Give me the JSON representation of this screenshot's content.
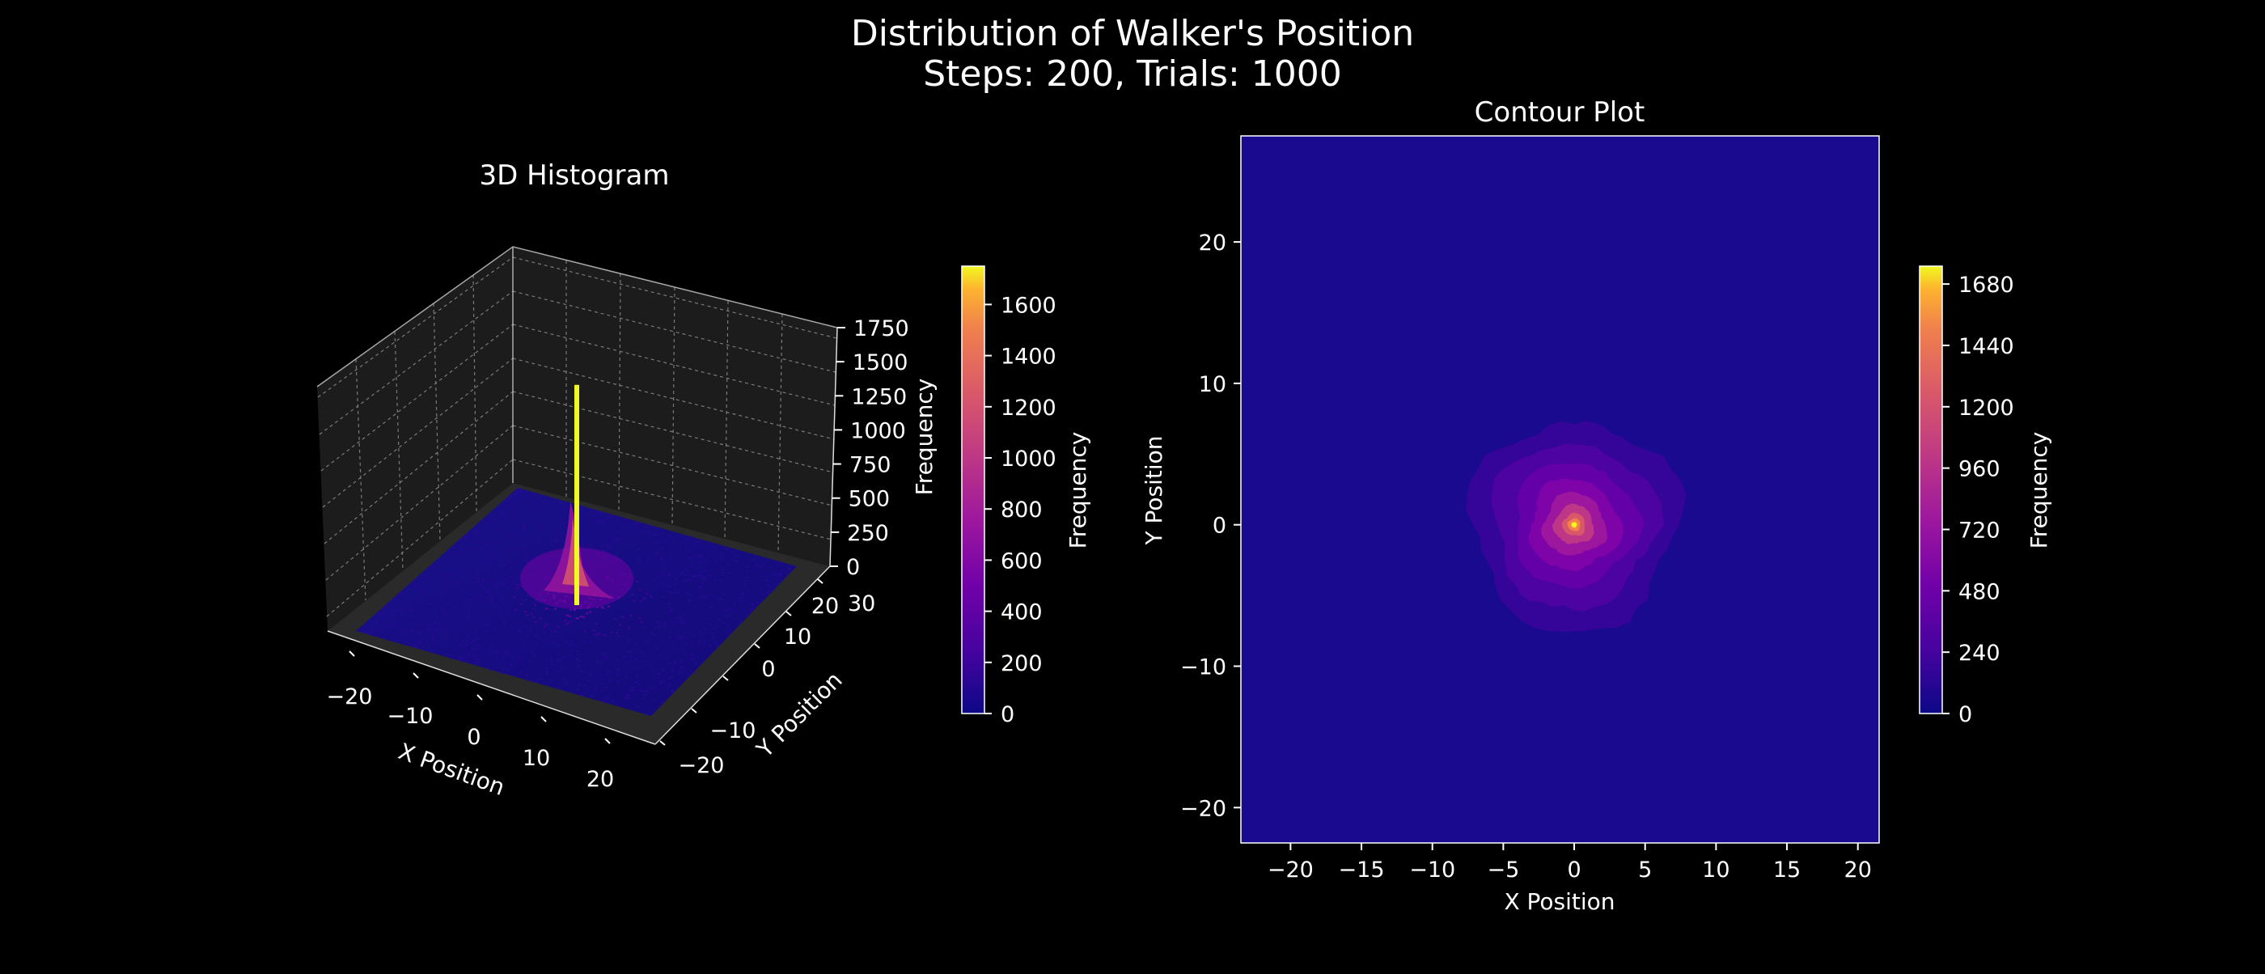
{
  "figure": {
    "title_line1": "Distribution of Walker's Position",
    "title_line2": "Steps: 200, Trials: 1000"
  },
  "chart_data": [
    {
      "type": "surface3d",
      "title": "3D Histogram",
      "xlabel": "X Position",
      "ylabel": "Y Position",
      "zlabel": "Frequency",
      "xlim": [
        -25,
        25
      ],
      "ylim": [
        -25,
        35
      ],
      "zlim": [
        0,
        1750
      ],
      "x_ticks": [
        "−20",
        "−10",
        "0",
        "10",
        "20"
      ],
      "y_ticks": [
        "−20",
        "−10",
        "0",
        "10",
        "20",
        "30"
      ],
      "z_ticks": [
        "0",
        "250",
        "500",
        "750",
        "1000",
        "1250",
        "1500",
        "1750"
      ],
      "peak": {
        "x": 0,
        "y": 0,
        "z": 1700
      },
      "grid": true,
      "colormap": "plasma",
      "colorbar": {
        "label": "Frequency",
        "range": [
          0,
          1750
        ],
        "ticks": [
          "0",
          "200",
          "400",
          "600",
          "800",
          "1000",
          "1200",
          "1400",
          "1600"
        ]
      }
    },
    {
      "type": "contour",
      "title": "Contour Plot",
      "xlabel": "X Position",
      "ylabel": "Y Position",
      "xlim": [
        -23.5,
        21.5
      ],
      "ylim": [
        -22.5,
        27.5
      ],
      "x_ticks": [
        "−20",
        "−15",
        "−10",
        "−5",
        "0",
        "5",
        "10",
        "15",
        "20"
      ],
      "y_ticks": [
        "−20",
        "−10",
        "0",
        "10",
        "20"
      ],
      "center": {
        "x": 0,
        "y": 0
      },
      "max_frequency": 1750,
      "colormap": "plasma",
      "colorbar": {
        "label": "Frequency",
        "range": [
          0,
          1750
        ],
        "ticks": [
          "0",
          "240",
          "480",
          "720",
          "960",
          "1200",
          "1440",
          "1680"
        ]
      }
    }
  ],
  "colors": {
    "background": "#000000",
    "pane": "#1c1c1c",
    "low": "#1a0a8f",
    "high": "#f0f921"
  }
}
